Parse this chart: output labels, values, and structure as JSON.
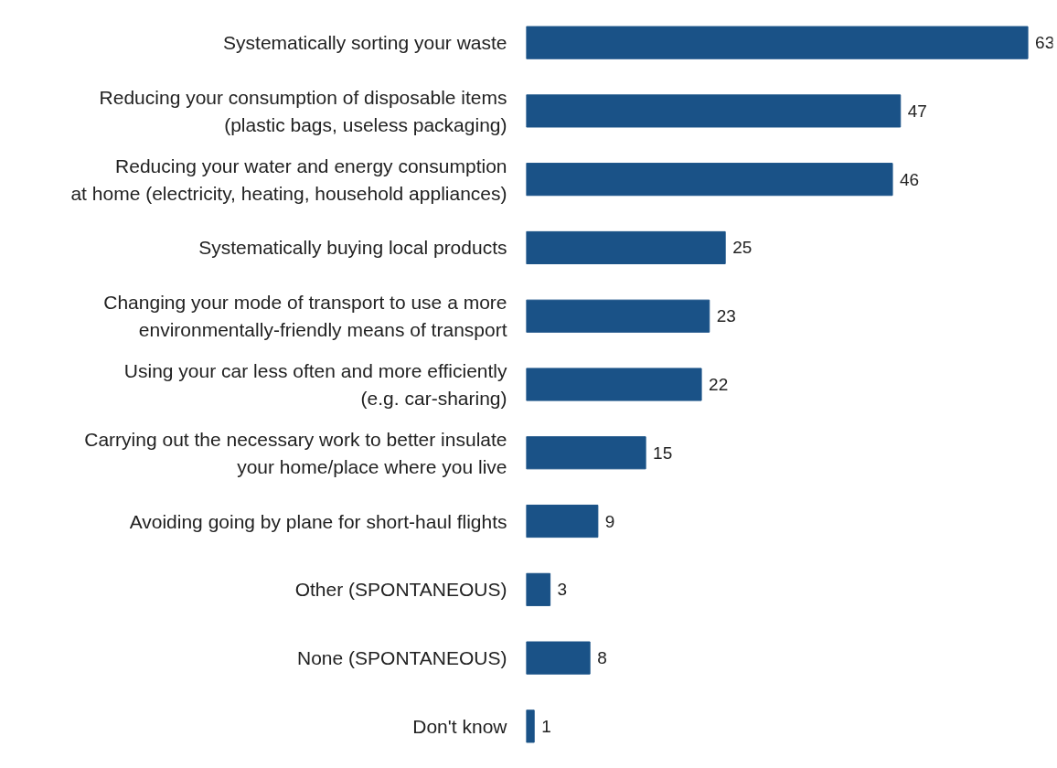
{
  "chart_data": {
    "type": "bar",
    "orientation": "horizontal",
    "categories": [
      "Systematically sorting your waste",
      "Reducing your consumption of disposable items\n(plastic bags, useless packaging)",
      "Reducing your water and energy consumption\nat home (electricity, heating, household appliances)",
      "Systematically buying local products",
      "Changing your mode of transport to use a more\nenvironmentally-friendly means of transport",
      "Using your car less often and more efficiently\n(e.g. car-sharing)",
      "Carrying out the necessary work to better insulate\nyour home/place where you live",
      "Avoiding going by plane for short-haul flights",
      "Other (SPONTANEOUS)",
      "None (SPONTANEOUS)",
      "Don't know"
    ],
    "values": [
      63,
      47,
      46,
      25,
      23,
      22,
      15,
      9,
      3,
      8,
      1
    ],
    "color": "#1a5287",
    "tick_labels": "y",
    "data_labels": true
  }
}
